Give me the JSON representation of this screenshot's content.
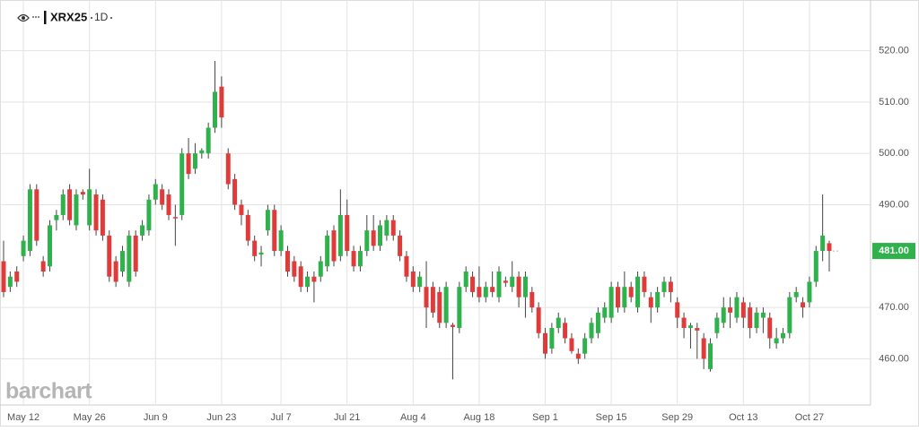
{
  "chart_data": {
    "type": "candlestick",
    "symbol": "XRX25",
    "interval": "1D",
    "watermark": "barchart",
    "up_color": "#2fb24c",
    "down_color": "#e03b3b",
    "categories": [
      null,
      null,
      null,
      "May 12",
      null,
      null,
      null,
      null,
      null,
      null,
      null,
      null,
      null,
      "May 26",
      null,
      null,
      null,
      null,
      null,
      null,
      null,
      null,
      null,
      "Jun 9",
      null,
      null,
      null,
      null,
      null,
      null,
      null,
      null,
      null,
      "Jun 23",
      null,
      null,
      null,
      null,
      null,
      null,
      null,
      null,
      "Jul 7",
      null,
      null,
      null,
      null,
      null,
      null,
      null,
      null,
      null,
      "Jul 21",
      null,
      null,
      null,
      null,
      null,
      null,
      null,
      null,
      null,
      "Aug 4",
      null,
      null,
      null,
      null,
      null,
      null,
      null,
      null,
      null,
      "Aug 18",
      null,
      null,
      null,
      null,
      null,
      null,
      null,
      null,
      null,
      "Sep 1",
      null,
      null,
      null,
      null,
      null,
      null,
      null,
      null,
      null,
      "Sep 15",
      null,
      null,
      null,
      null,
      null,
      null,
      null,
      null,
      null,
      "Sep 29",
      null,
      null,
      null,
      null,
      null,
      null,
      null,
      null,
      null,
      "Oct 13",
      null,
      null,
      null,
      null,
      null,
      null,
      null,
      null,
      null,
      "Oct 27",
      null,
      null,
      null
    ],
    "ohlc": [
      [
        479,
        483,
        472,
        473
      ],
      [
        474,
        477,
        473,
        476
      ],
      [
        477,
        478,
        474,
        475
      ],
      [
        480,
        484,
        479,
        483
      ],
      [
        481,
        494,
        480,
        493
      ],
      [
        493,
        494,
        482,
        483
      ],
      [
        479,
        480,
        476,
        477
      ],
      [
        478,
        487,
        477,
        486
      ],
      [
        487,
        489,
        485,
        488
      ],
      [
        488,
        493,
        487,
        492
      ],
      [
        493,
        494,
        486,
        487
      ],
      [
        486,
        493,
        485,
        492
      ],
      [
        492.5,
        493,
        491,
        492
      ],
      [
        486,
        497,
        485,
        493
      ],
      [
        492,
        493,
        484,
        485
      ],
      [
        491,
        492,
        483,
        484
      ],
      [
        484,
        485,
        475,
        476
      ],
      [
        479,
        480,
        474,
        475
      ],
      [
        477,
        482,
        476,
        481
      ],
      [
        475,
        485,
        474,
        484
      ],
      [
        484,
        485,
        476,
        477
      ],
      [
        484,
        487,
        483,
        486
      ],
      [
        485,
        492,
        484,
        491
      ],
      [
        491,
        495,
        490,
        494
      ],
      [
        493,
        494,
        489,
        490
      ],
      [
        492,
        493,
        487,
        488
      ],
      [
        487.6,
        490,
        482,
        487.4
      ],
      [
        488,
        501,
        487,
        500
      ],
      [
        500,
        503,
        495,
        496
      ],
      [
        497,
        502,
        496,
        500
      ],
      [
        500,
        501,
        499,
        500.6
      ],
      [
        500,
        506,
        499,
        505
      ],
      [
        505,
        518,
        504,
        512
      ],
      [
        513,
        515,
        505,
        507
      ],
      [
        500,
        501,
        493,
        494
      ],
      [
        495,
        496,
        489,
        490
      ],
      [
        490,
        491,
        486,
        488
      ],
      [
        488,
        489,
        482,
        483
      ],
      [
        483,
        484,
        479,
        480
      ],
      [
        480.3,
        482,
        478,
        480.7
      ],
      [
        485,
        490,
        484,
        489
      ],
      [
        489,
        490,
        480,
        481
      ],
      [
        481,
        486,
        480,
        485
      ],
      [
        481,
        482,
        476,
        477
      ],
      [
        479,
        480,
        475,
        476
      ],
      [
        478,
        479,
        473,
        474
      ],
      [
        474,
        477,
        473,
        476
      ],
      [
        476,
        477,
        471,
        475
      ],
      [
        476,
        480,
        475,
        479
      ],
      [
        478,
        485,
        477,
        484
      ],
      [
        485,
        486,
        478,
        479
      ],
      [
        480,
        493,
        479,
        488
      ],
      [
        488,
        491,
        480,
        481
      ],
      [
        481,
        482,
        477,
        478
      ],
      [
        478,
        482,
        477,
        481
      ],
      [
        481,
        488,
        480,
        485
      ],
      [
        485,
        488,
        481,
        482
      ],
      [
        482,
        487,
        481,
        486
      ],
      [
        484,
        488,
        483,
        487
      ],
      [
        487,
        488,
        483,
        484
      ],
      [
        484,
        485,
        479,
        480
      ],
      [
        480,
        481,
        475,
        476
      ],
      [
        477,
        478,
        473,
        474
      ],
      [
        474,
        477,
        473,
        476
      ],
      [
        474,
        479,
        466,
        470
      ],
      [
        474,
        475,
        468,
        469
      ],
      [
        473,
        474,
        466,
        467
      ],
      [
        467,
        475,
        466,
        474
      ],
      [
        466.6,
        467,
        456,
        466.2
      ],
      [
        466,
        475,
        465,
        474
      ],
      [
        474,
        478,
        473,
        477
      ],
      [
        476,
        477,
        472,
        473
      ],
      [
        474,
        478,
        471,
        472
      ],
      [
        472,
        475,
        471,
        474
      ],
      [
        474,
        477,
        472,
        473
      ],
      [
        472,
        478,
        471,
        477
      ],
      [
        475.2,
        476,
        474,
        474.8
      ],
      [
        474,
        479,
        473,
        476
      ],
      [
        476,
        477,
        470,
        472
      ],
      [
        472,
        477,
        468,
        476
      ],
      [
        473,
        474,
        469,
        470
      ],
      [
        470,
        471,
        464,
        465
      ],
      [
        465,
        466,
        460,
        461
      ],
      [
        462,
        467,
        461,
        466
      ],
      [
        466,
        469,
        465,
        468
      ],
      [
        467,
        468,
        463,
        464
      ],
      [
        464,
        465,
        461,
        461.5
      ],
      [
        461,
        462,
        459,
        460
      ],
      [
        461,
        465,
        460,
        464
      ],
      [
        464,
        468,
        463,
        467
      ],
      [
        465,
        470,
        464,
        469
      ],
      [
        468,
        471,
        467,
        470
      ],
      [
        468,
        475,
        467,
        474
      ],
      [
        474,
        475,
        469,
        470
      ],
      [
        470,
        477,
        469,
        474
      ],
      [
        474,
        475,
        471,
        472
      ],
      [
        470,
        477,
        469,
        476
      ],
      [
        476,
        477,
        472,
        473
      ],
      [
        472,
        473,
        467,
        470
      ],
      [
        470,
        474,
        469,
        473
      ],
      [
        473,
        476,
        472,
        475
      ],
      [
        475,
        476,
        471,
        473
      ],
      [
        471,
        472,
        466,
        468
      ],
      [
        468,
        469,
        464,
        466
      ],
      [
        466,
        467,
        462,
        466.5
      ],
      [
        466,
        467,
        460,
        465.5
      ],
      [
        464,
        465,
        458,
        460
      ],
      [
        458,
        464,
        457.5,
        463
      ],
      [
        465,
        469,
        464,
        468
      ],
      [
        467,
        472,
        466,
        470
      ],
      [
        470,
        472,
        466,
        469
      ],
      [
        468,
        473,
        467,
        472
      ],
      [
        471,
        472,
        466,
        468
      ],
      [
        470,
        471,
        464,
        466
      ],
      [
        466,
        470,
        465,
        469
      ],
      [
        468,
        470,
        465,
        469
      ],
      [
        468,
        469,
        462,
        464
      ],
      [
        463,
        466,
        462,
        464
      ],
      [
        464,
        466,
        463,
        465
      ],
      [
        465,
        473,
        464,
        472
      ],
      [
        472,
        474,
        471,
        473
      ],
      [
        471,
        472,
        468,
        470
      ],
      [
        471,
        476,
        470,
        475
      ],
      [
        475,
        482,
        474,
        481
      ],
      [
        481,
        492,
        479,
        484
      ],
      [
        482.5,
        483,
        477,
        481
      ]
    ],
    "ylim": [
      451,
      529
    ],
    "yticks": [
      {
        "value": 460,
        "label": "460.00"
      },
      {
        "value": 470,
        "label": "470.00"
      },
      {
        "value": 490,
        "label": "490.00"
      },
      {
        "value": 500,
        "label": "500.00"
      },
      {
        "value": 510,
        "label": "510.00"
      },
      {
        "value": 520,
        "label": "520.00"
      }
    ],
    "last_price": {
      "value": 481,
      "label": "481.00"
    },
    "grid": true
  }
}
